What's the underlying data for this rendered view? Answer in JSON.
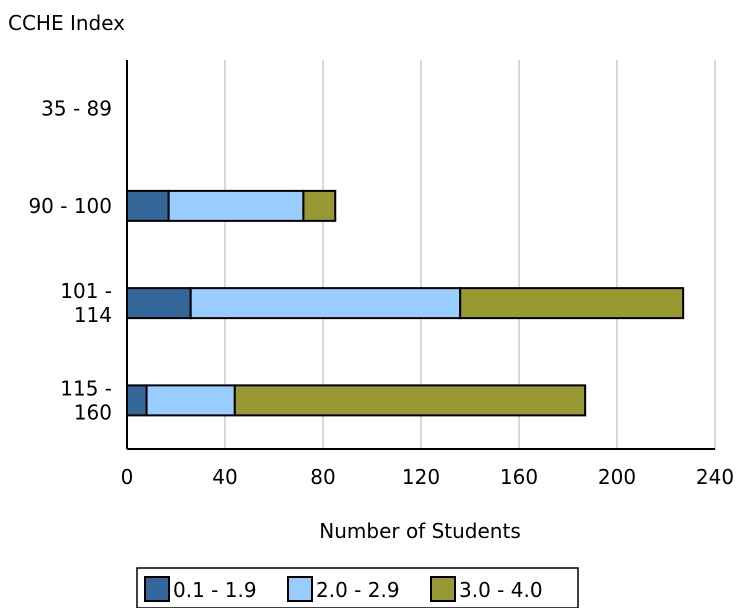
{
  "chart_data": {
    "type": "bar",
    "orientation": "horizontal",
    "stacked": true,
    "title": "",
    "ylabel": "CCHE Index",
    "xlabel": "Number of Students",
    "categories": [
      [
        "35 - 89"
      ],
      [
        "90 - 100"
      ],
      [
        "101 -",
        "114"
      ],
      [
        "115 -",
        "160"
      ]
    ],
    "xlim": [
      0,
      240
    ],
    "xticks": [
      0,
      40,
      80,
      120,
      160,
      200,
      240
    ],
    "grid": "vertical",
    "legend_position": "bottom",
    "series": [
      {
        "name": "0.1 - 1.9",
        "color": "#336699",
        "values": [
          0,
          17,
          26,
          8
        ]
      },
      {
        "name": "2.0 - 2.9",
        "color": "#99ccff",
        "values": [
          0,
          55,
          110,
          36
        ]
      },
      {
        "name": "3.0 - 4.0",
        "color": "#999933",
        "values": [
          0,
          13,
          91,
          143
        ]
      }
    ]
  }
}
